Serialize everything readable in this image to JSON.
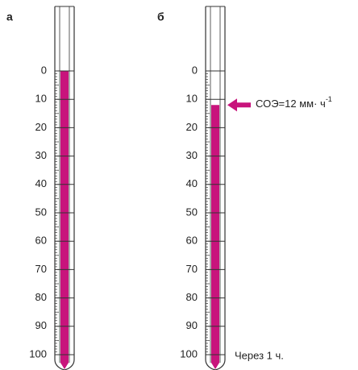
{
  "panels": [
    {
      "label": "а",
      "scale": [
        0,
        10,
        20,
        30,
        40,
        50,
        60,
        70,
        80,
        90,
        100
      ],
      "fill_top": 0
    },
    {
      "label": "б",
      "scale": [
        0,
        10,
        20,
        30,
        40,
        50,
        60,
        70,
        80,
        90,
        100
      ],
      "fill_top": 12,
      "annotation": {
        "text": "СОЭ=12 мм· ч",
        "superscript": "-1"
      },
      "caption": "Через 1 ч."
    }
  ]
}
